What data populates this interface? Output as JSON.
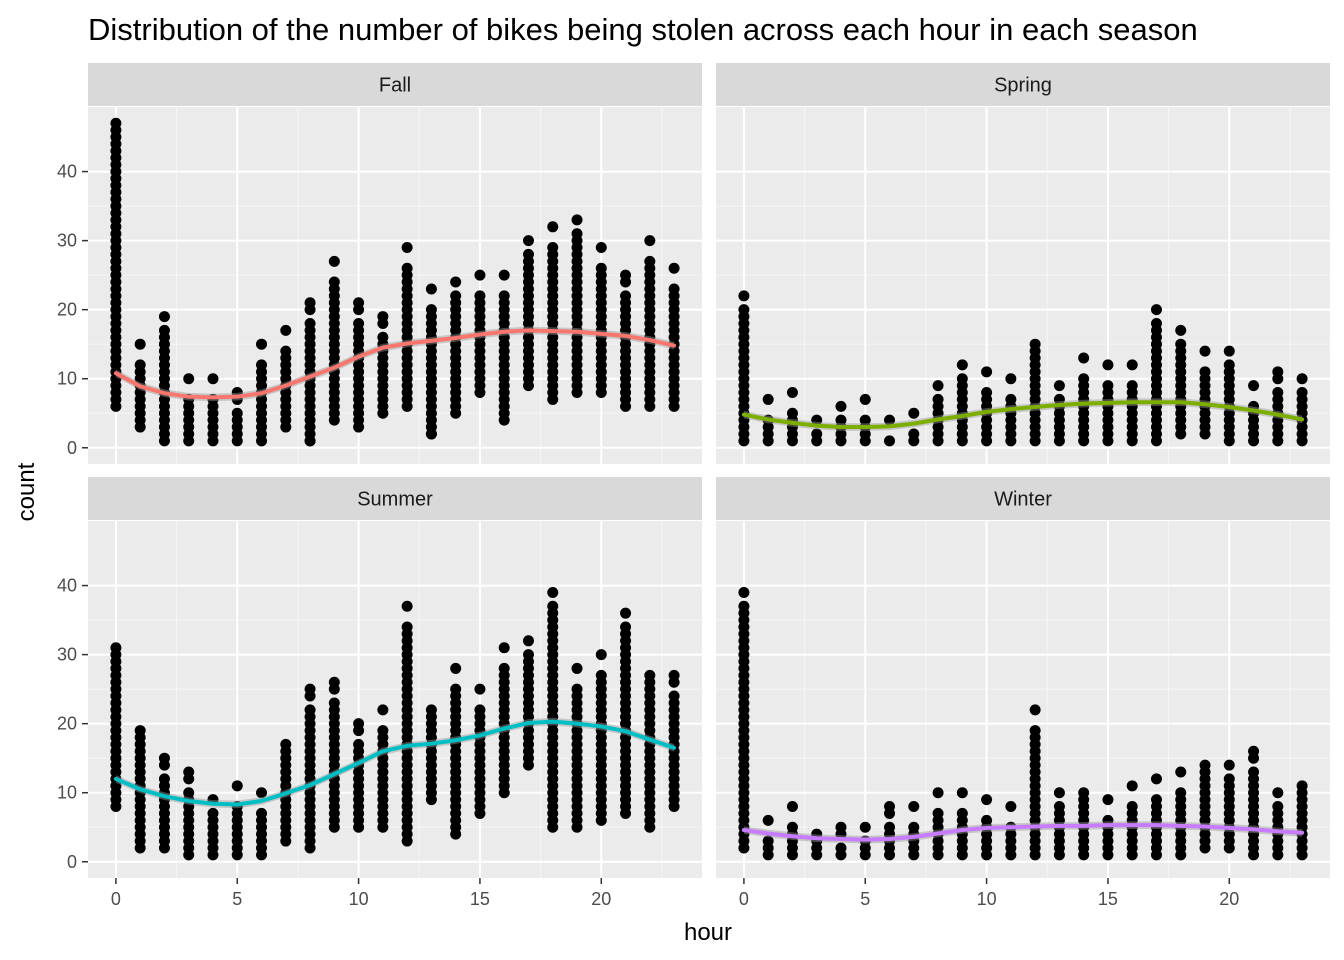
{
  "chart_data": {
    "type": "scatter",
    "title": "Distribution of the number of bikes being stolen across each hour in each season",
    "xlabel": "hour",
    "ylabel": "count",
    "xlim": [
      -1.15,
      24.15
    ],
    "ylim": [
      -2.35,
      49.35
    ],
    "x_ticks": [
      0,
      5,
      10,
      15,
      20
    ],
    "y_ticks": [
      0,
      10,
      20,
      30,
      40
    ],
    "grid": true,
    "colors": {
      "panel_bg": "#EBEBEB",
      "strip_bg": "#D9D9D9",
      "grid_major": "#FFFFFF",
      "grid_minor": "#F5F5F5",
      "point": "#000000",
      "ribbon": "#999999"
    },
    "facets": [
      {
        "name": "Fall",
        "color": "#F8766D",
        "max": [
          47,
          15,
          19,
          10,
          10,
          8,
          15,
          17,
          21,
          27,
          21,
          19,
          29,
          23,
          24,
          25,
          25,
          30,
          32,
          33,
          29,
          25,
          30,
          26
        ],
        "min": [
          6,
          3,
          1,
          1,
          1,
          1,
          1,
          3,
          1,
          4,
          3,
          5,
          6,
          2,
          5,
          8,
          4,
          9,
          7,
          8,
          8,
          6,
          6,
          6
        ],
        "outliers": [
          [
            8,
            1
          ],
          [
            13,
            2
          ]
        ],
        "smooth": [
          10.8,
          8.9,
          7.9,
          7.4,
          7.3,
          7.4,
          7.9,
          9,
          10.3,
          11.6,
          13.2,
          14.5,
          15.1,
          15.5,
          15.9,
          16.4,
          16.8,
          17,
          16.9,
          16.8,
          16.5,
          16.2,
          15.6,
          14.8
        ]
      },
      {
        "name": "Spring",
        "color": "#7CAE00",
        "max": [
          22,
          7,
          8,
          4,
          6,
          7,
          4,
          5,
          9,
          12,
          11,
          10,
          15,
          9,
          13,
          12,
          12,
          20,
          17,
          14,
          14,
          9,
          11,
          10
        ],
        "min": [
          1,
          1,
          1,
          1,
          1,
          1,
          1,
          1,
          1,
          1,
          1,
          1,
          1,
          1,
          1,
          1,
          1,
          1,
          2,
          2,
          1,
          1,
          1,
          1
        ],
        "outliers": [],
        "smooth": [
          4.8,
          4.1,
          3.6,
          3.2,
          3,
          3,
          3.1,
          3.5,
          4.1,
          4.6,
          5.2,
          5.6,
          5.9,
          6.2,
          6.4,
          6.5,
          6.6,
          6.6,
          6.6,
          6.3,
          5.9,
          5.4,
          4.8,
          4.1
        ]
      },
      {
        "name": "Summer",
        "color": "#00BFC4",
        "max": [
          31,
          19,
          15,
          13,
          9,
          11,
          10,
          17,
          25,
          26,
          20,
          22,
          37,
          22,
          28,
          25,
          31,
          32,
          39,
          28,
          30,
          36,
          27,
          27
        ],
        "min": [
          8,
          2,
          2,
          1,
          1,
          1,
          1,
          3,
          2,
          5,
          5,
          5,
          3,
          9,
          4,
          7,
          10,
          14,
          5,
          5,
          6,
          7,
          5,
          8
        ],
        "outliers": [],
        "smooth": [
          12,
          10.5,
          9.5,
          8.8,
          8.4,
          8.3,
          8.8,
          9.9,
          11.1,
          12.7,
          14.3,
          16,
          16.8,
          17.1,
          17.6,
          18.3,
          19.3,
          20.1,
          20.3,
          20,
          19.6,
          18.9,
          17.7,
          16.5
        ]
      },
      {
        "name": "Winter",
        "color": "#C77CFF",
        "max": [
          39,
          6,
          8,
          4,
          5,
          5,
          8,
          8,
          10,
          10,
          9,
          8,
          22,
          10,
          10,
          9,
          11,
          12,
          13,
          14,
          14,
          16,
          10,
          11
        ],
        "min": [
          2,
          1,
          1,
          1,
          1,
          1,
          1,
          1,
          1,
          1,
          1,
          1,
          1,
          1,
          1,
          1,
          1,
          1,
          1,
          2,
          2,
          1,
          1,
          1
        ],
        "outliers": [],
        "smooth": [
          4.6,
          4.1,
          3.7,
          3.4,
          3.3,
          3.2,
          3.3,
          3.6,
          4.1,
          4.6,
          4.9,
          5,
          5.1,
          5.2,
          5.2,
          5.3,
          5.3,
          5.3,
          5.2,
          5.1,
          4.9,
          4.7,
          4.4,
          4.2
        ]
      }
    ]
  }
}
